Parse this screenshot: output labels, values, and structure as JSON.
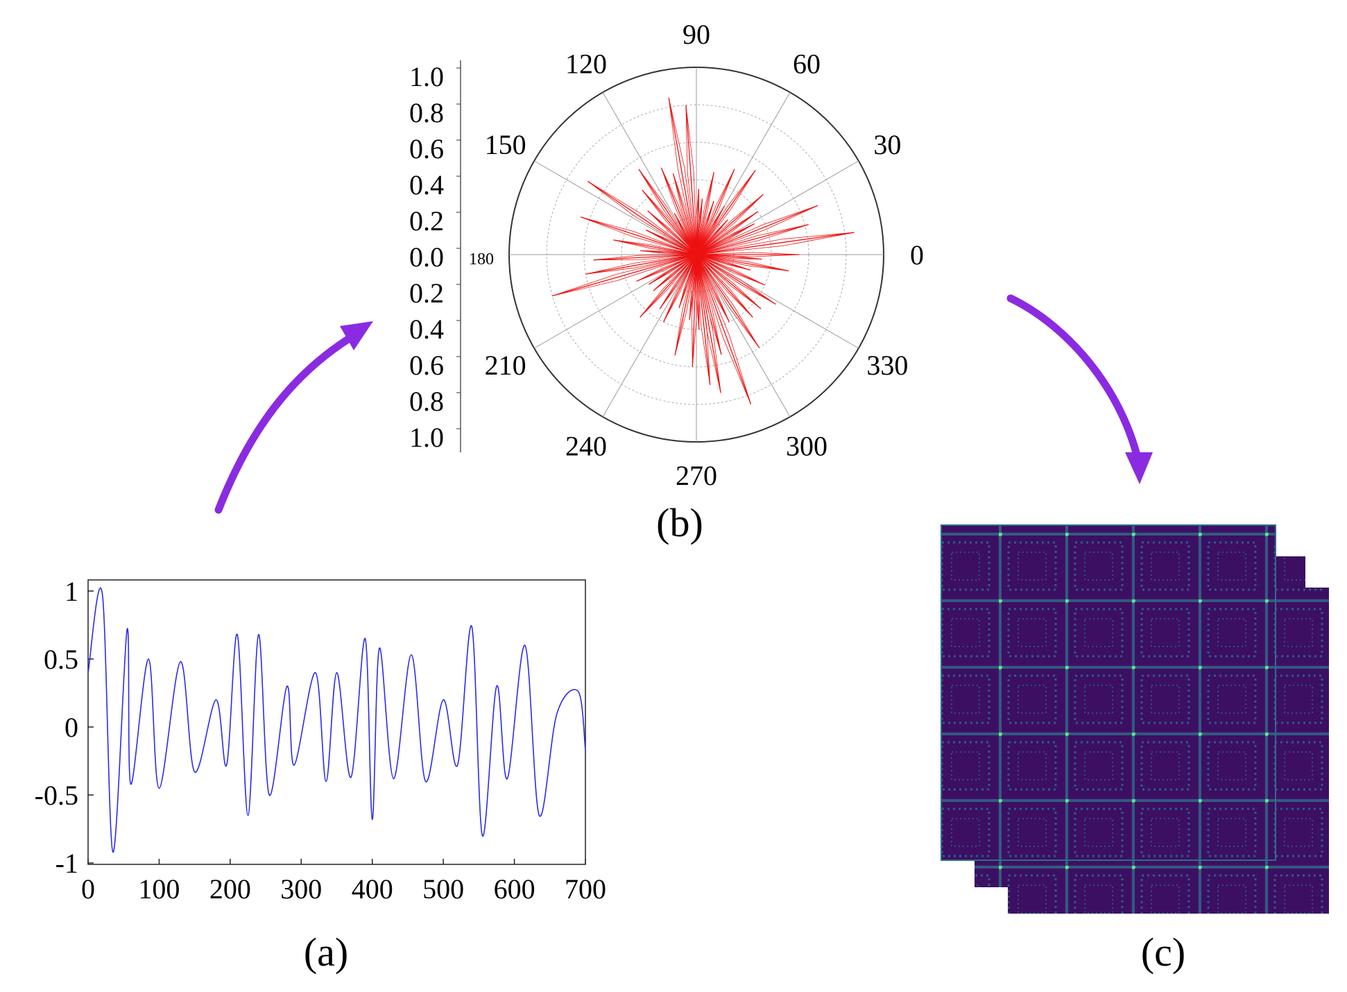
{
  "panels": {
    "a": {
      "caption": "(a)"
    },
    "b": {
      "caption": "(b)"
    },
    "c": {
      "caption": "(c)"
    }
  },
  "colors": {
    "signal": "#2a2aee",
    "polar": "#ee1111",
    "arrow": "#8a2be2",
    "gaf_bg": "#44116b",
    "gaf_line": "#2a8a8a",
    "gaf_hot": "#66e08a"
  },
  "chart_data": [
    {
      "id": "a",
      "type": "line",
      "x_ticks": [
        "0",
        "100",
        "200",
        "300",
        "400",
        "500",
        "600",
        "700"
      ],
      "y_ticks": [
        "1",
        "0.5",
        "0",
        "-0.5",
        "-1"
      ],
      "xlim": [
        0,
        700
      ],
      "ylim": [
        -1,
        1
      ],
      "series": [
        {
          "x": [
            0,
            20,
            35,
            55,
            60,
            85,
            100,
            130,
            150,
            180,
            195,
            210,
            225,
            240,
            255,
            280,
            290,
            320,
            335,
            350,
            370,
            390,
            400,
            410,
            430,
            455,
            475,
            500,
            520,
            540,
            555,
            575,
            590,
            615,
            635,
            660,
            690,
            700
          ],
          "y": [
            0.4,
            0.98,
            -0.92,
            0.72,
            -0.42,
            0.5,
            -0.45,
            0.48,
            -0.33,
            0.2,
            -0.28,
            0.68,
            -0.65,
            0.68,
            -0.5,
            0.3,
            -0.28,
            0.4,
            -0.4,
            0.4,
            -0.37,
            0.65,
            -0.68,
            0.58,
            -0.38,
            0.53,
            -0.4,
            0.2,
            -0.28,
            0.74,
            -0.8,
            0.3,
            -0.38,
            0.6,
            -0.65,
            0.1,
            0.26,
            -0.17
          ]
        }
      ]
    },
    {
      "id": "b",
      "type": "polar",
      "angle_ticks": [
        "0",
        "30",
        "60",
        "90",
        "120",
        "150",
        "180",
        "210",
        "240",
        "270",
        "300",
        "330"
      ],
      "radial_ticks": [
        "1.0",
        "0.8",
        "0.6",
        "0.4",
        "0.2",
        "0.0",
        "0.2",
        "0.4",
        "0.6",
        "0.8",
        "1.0"
      ],
      "rlim": [
        0,
        1
      ],
      "spokes": {
        "theta": [
          0,
          8,
          15,
          22,
          28,
          35,
          42,
          48,
          55,
          60,
          66,
          72,
          78,
          84,
          88,
          94,
          100,
          106,
          112,
          118,
          124,
          130,
          138,
          146,
          154,
          162,
          170,
          176,
          183,
          190,
          196,
          204,
          212,
          220,
          228,
          236,
          244,
          252,
          258,
          264,
          268,
          272,
          276,
          280,
          284,
          290,
          296,
          304,
          312,
          320,
          328,
          336,
          344,
          350,
          356
        ],
        "r": [
          0.55,
          0.85,
          0.62,
          0.7,
          0.35,
          0.4,
          0.48,
          0.25,
          0.55,
          0.3,
          0.5,
          0.3,
          0.45,
          0.3,
          0.35,
          0.8,
          0.85,
          0.45,
          0.5,
          0.25,
          0.55,
          0.45,
          0.35,
          0.7,
          0.3,
          0.65,
          0.45,
          0.3,
          0.55,
          0.6,
          0.8,
          0.35,
          0.3,
          0.3,
          0.45,
          0.35,
          0.4,
          0.3,
          0.55,
          0.35,
          0.6,
          0.4,
          0.7,
          0.75,
          0.55,
          0.85,
          0.4,
          0.6,
          0.45,
          0.45,
          0.5,
          0.4,
          0.3,
          0.5,
          0.35
        ]
      }
    }
  ]
}
